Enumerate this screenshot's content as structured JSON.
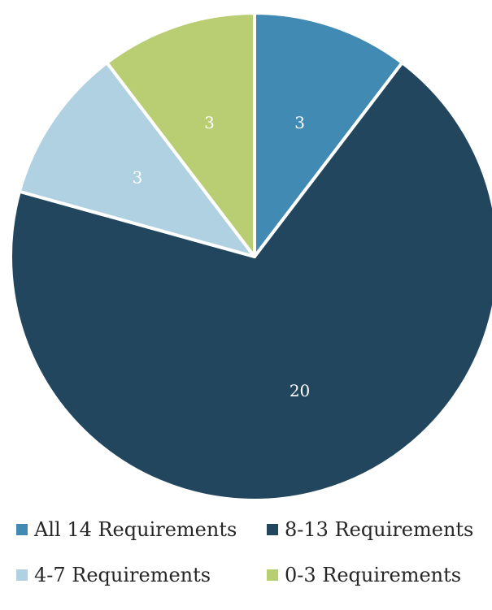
{
  "chart_data": {
    "type": "pie",
    "title": "",
    "slices": [
      {
        "label": "All 14 Requirements",
        "value": 3,
        "color": "#418AB3",
        "data_label": "3"
      },
      {
        "label": "8-13 Requirements",
        "value": 20,
        "color": "#22465E",
        "data_label": "20"
      },
      {
        "label": "4-7 Requirements",
        "value": 3,
        "color": "#B0D1E2",
        "data_label": "3"
      },
      {
        "label": "0-3 Requirements",
        "value": 3,
        "color": "#B9CE73",
        "data_label": "3"
      }
    ],
    "start_angle_deg": 0,
    "direction": "clockwise",
    "legend_position": "bottom"
  }
}
